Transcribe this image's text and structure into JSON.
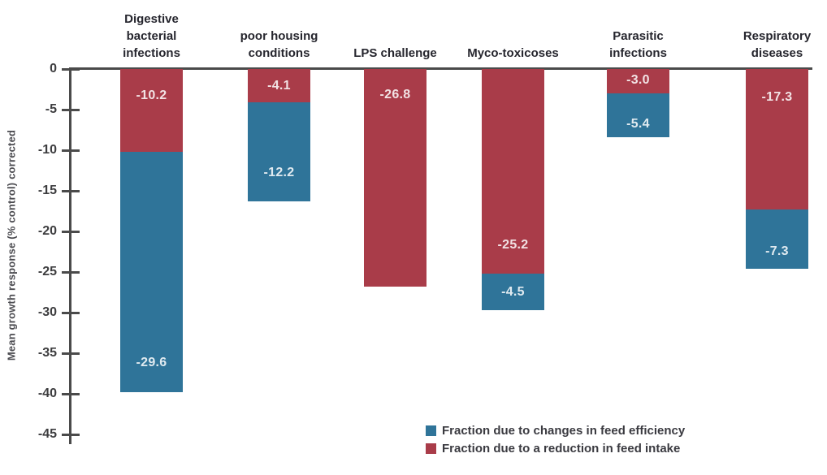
{
  "chart_data": {
    "type": "bar",
    "stacked": true,
    "orientation": "vertical",
    "title": "",
    "ylabel": "Mean growth response (% control) corrected",
    "xlabel": "",
    "ylim": [
      -45,
      0
    ],
    "yticks": [
      "0",
      "-5",
      "-10",
      "-15",
      "-20",
      "-25",
      "-30",
      "-35",
      "-40",
      "-45"
    ],
    "grid": false,
    "axis_color": "#4A4A4A",
    "categories": [
      "Digestive\nbacterial\ninfections",
      "poor housing\nconditions",
      "LPS challenge",
      "Myco-toxicoses",
      "Parasitic\ninfections",
      "Respiratory\ndiseases"
    ],
    "series": [
      {
        "name": "Fraction due to a reduction in feed intake",
        "color": "#A93C49",
        "values": [
          -10.2,
          -4.1,
          -26.8,
          -25.2,
          -3.0,
          -17.3
        ],
        "labels": [
          "-10.2",
          "-4.1",
          "-26.8",
          "-25.2",
          "-3.0",
          "-17.3"
        ],
        "label_frac": [
          0.32,
          0.5,
          0.12,
          0.86,
          0.45,
          0.2
        ]
      },
      {
        "name": "Fraction due to changes in feed efficiency",
        "color": "#2F7499",
        "values": [
          -29.6,
          -12.2,
          0,
          -4.5,
          -5.4,
          -7.3
        ],
        "labels": [
          "-29.6",
          "-12.2",
          "",
          "-4.5",
          "-5.4",
          "-7.3"
        ],
        "label_frac": [
          0.88,
          0.71,
          0.5,
          0.51,
          0.7,
          0.71
        ]
      }
    ],
    "totals": [
      -39.8,
      -16.3,
      -26.8,
      -29.7,
      -8.4,
      -24.6
    ],
    "legend_position": "bottom-center",
    "legend": [
      {
        "label": "Fraction due to changes in feed efficiency",
        "color": "#2F7499"
      },
      {
        "label": "Fraction due to a reduction in feed intake",
        "color": "#A93C49"
      }
    ]
  }
}
